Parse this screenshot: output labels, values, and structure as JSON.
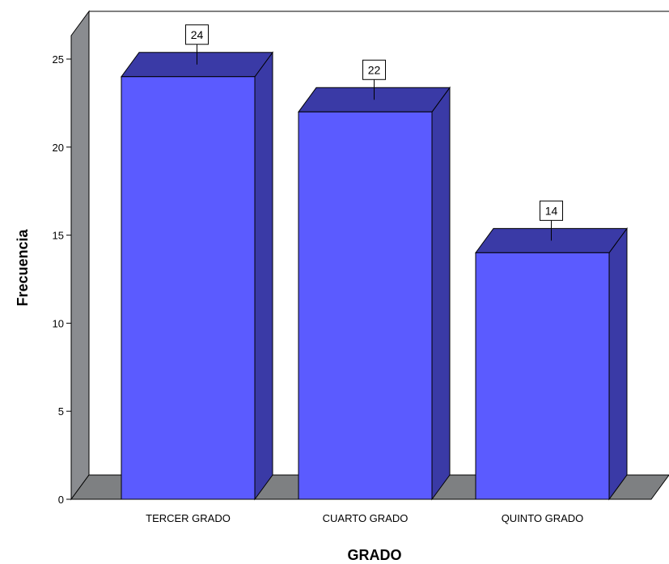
{
  "chart_data": {
    "type": "bar",
    "style": "3d",
    "categories": [
      "TERCER GRADO",
      "CUARTO GRADO",
      "QUINTO GRADO"
    ],
    "values": [
      24,
      22,
      14
    ],
    "data_labels": [
      "24",
      "22",
      "14"
    ],
    "xlabel": "GRADO",
    "ylabel": "Frecuencia",
    "ylim": [
      0,
      25
    ],
    "yticks": [
      0,
      5,
      10,
      15,
      20,
      25
    ],
    "ytick_labels": [
      "0",
      "5",
      "10",
      "15",
      "20",
      "25"
    ],
    "grid": false,
    "legend": "none",
    "colors": {
      "bar_front": "#5B5BFF",
      "bar_top": "#3A3AA6",
      "bar_side": "#3A3AA6",
      "wall": "#8A8C90",
      "floor": "#7E8082"
    }
  }
}
